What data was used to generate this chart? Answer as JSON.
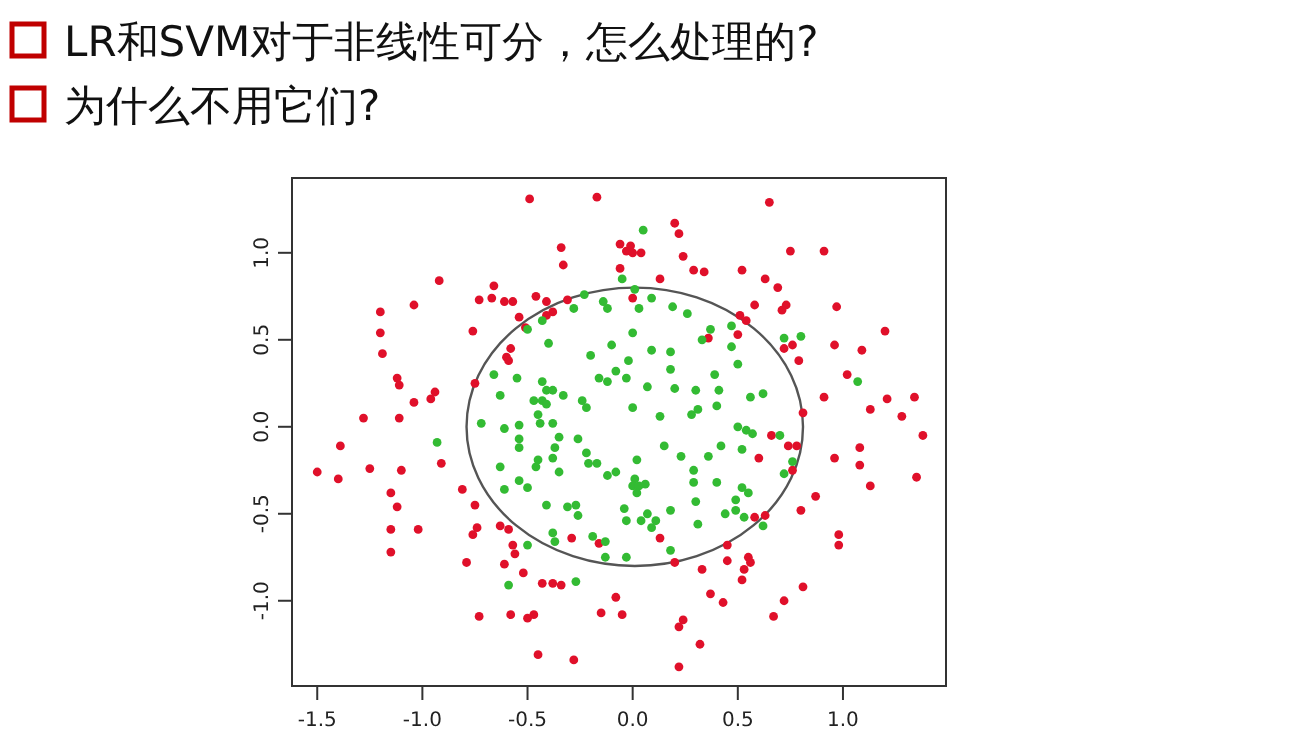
{
  "chart_data": {
    "type": "scatter",
    "title": "LR和SVM对于非线性可分，怎么处理的?",
    "subtitle": "为什么不用它们?",
    "xlim": [
      -1.62,
      1.49
    ],
    "ylim": [
      -1.49,
      1.43
    ],
    "xticks": [
      -1.5,
      {
        "value": -1,
        "label": "-1.0"
      },
      -0.5,
      {
        "value": 0,
        "label": "0.0"
      },
      0.5,
      {
        "value": 1,
        "label": "1.0"
      }
    ],
    "yticks": [
      {
        "value": -1,
        "label": "-1.0"
      },
      -0.5,
      {
        "value": 0,
        "label": "0.0"
      },
      0.5,
      {
        "value": 1,
        "label": "1.0"
      }
    ],
    "marker": "circle",
    "series": [
      {
        "color": "#e0102a",
        "x": [
          -0.49,
          -0.17,
          -0.34,
          -0.33,
          -0.92,
          -1.04,
          -1.2,
          -0.66,
          -0.73,
          -0.67,
          -0.61,
          -0.57,
          -0.46,
          -0.41,
          -0.31,
          -0.38,
          -0.41,
          -0.54,
          -1.2,
          -0.76,
          -0.51,
          -1.19,
          -0.58,
          -0.6,
          -0.59,
          -1.12,
          -1.11,
          -0.94,
          -0.96,
          -1.04,
          -0.75,
          -1.28,
          -1.11,
          0.65,
          0.2,
          0.22,
          -0.06,
          -0.01,
          -0.03,
          0.0,
          0.04,
          -0.06,
          0.24,
          0.29,
          0.34,
          0.75,
          0.91,
          0.52,
          0.13,
          0.63,
          0.69,
          0.0,
          0.58,
          0.73,
          0.71,
          0.97,
          0.51,
          0.54,
          0.5,
          0.36,
          1.2,
          0.76,
          0.72,
          0.96,
          1.09,
          0.79,
          1.02,
          0.91,
          1.13,
          1.21,
          1.34,
          1.28,
          0.81,
          -1.39,
          -1.5,
          -1.4,
          -1.25,
          -1.1,
          -0.91,
          -1.15,
          -1.12,
          -1.15,
          -1.02,
          -1.15,
          -0.81,
          -0.75,
          -0.74,
          -0.76,
          -0.63,
          -0.59,
          -0.57,
          -0.56,
          -0.61,
          -0.79,
          -0.52,
          -0.43,
          -0.38,
          -0.34,
          -0.29,
          -0.16,
          -0.73,
          -0.58,
          -0.5,
          -0.47,
          -0.15,
          -0.08,
          -0.45,
          -0.28,
          0.66,
          0.74,
          0.78,
          1.38,
          1.08,
          1.08,
          0.96,
          1.13,
          1.35,
          0.76,
          0.6,
          0.87,
          0.8,
          0.58,
          0.63,
          0.98,
          0.98,
          0.13,
          0.45,
          0.55,
          0.56,
          0.53,
          0.52,
          0.45,
          0.2,
          0.33,
          0.37,
          0.43,
          0.81,
          0.72,
          0.67,
          -0.05,
          0.24,
          0.22,
          0.32,
          0.22
        ],
        "values": [
          1.31,
          1.32,
          1.03,
          0.93,
          0.84,
          0.7,
          0.66,
          0.81,
          0.73,
          0.74,
          0.72,
          0.72,
          0.75,
          0.72,
          0.73,
          0.66,
          0.64,
          0.63,
          0.54,
          0.55,
          0.57,
          0.42,
          0.45,
          0.4,
          0.38,
          0.28,
          0.24,
          0.2,
          0.16,
          0.14,
          0.25,
          0.05,
          0.05,
          1.29,
          1.17,
          1.11,
          1.05,
          1.04,
          1.01,
          1.0,
          1.0,
          0.91,
          0.98,
          0.9,
          0.89,
          1.01,
          1.01,
          0.9,
          0.85,
          0.85,
          0.8,
          0.74,
          0.7,
          0.7,
          0.67,
          0.69,
          0.64,
          0.61,
          0.53,
          0.51,
          0.55,
          0.47,
          0.45,
          0.47,
          0.44,
          0.38,
          0.3,
          0.17,
          0.1,
          0.16,
          0.17,
          0.06,
          0.08,
          -0.11,
          -0.26,
          -0.3,
          -0.24,
          -0.25,
          -0.21,
          -0.38,
          -0.46,
          -0.59,
          -0.59,
          -0.72,
          -0.36,
          -0.45,
          -0.58,
          -0.62,
          -0.57,
          -0.59,
          -0.68,
          -0.73,
          -0.79,
          -0.78,
          -0.84,
          -0.9,
          -0.9,
          -0.91,
          -0.64,
          -0.67,
          -1.09,
          -1.08,
          -1.1,
          -1.08,
          -1.07,
          -0.98,
          -1.31,
          -1.34,
          -0.05,
          -0.11,
          -0.11,
          -0.05,
          -0.12,
          -0.22,
          -0.18,
          -0.34,
          -0.29,
          -0.25,
          -0.18,
          -0.4,
          -0.48,
          -0.52,
          -0.51,
          -0.62,
          -0.68,
          -0.64,
          -0.68,
          -0.75,
          -0.78,
          -0.82,
          -0.88,
          -0.77,
          -0.78,
          -0.82,
          -0.96,
          -1.01,
          -0.92,
          -1.0,
          -1.09,
          -1.08,
          -1.11,
          -1.15,
          -1.25,
          -1.38
        ]
      },
      {
        "color": "#33bb33",
        "x": [
          -0.23,
          -0.14,
          -0.12,
          -0.28,
          -0.43,
          -0.5,
          -0.4,
          -0.2,
          -0.1,
          -0.66,
          -0.55,
          -0.63,
          -0.43,
          -0.41,
          -0.38,
          -0.33,
          -0.47,
          -0.43,
          -0.41,
          -0.45,
          -0.24,
          -0.22,
          -0.16,
          -0.12,
          -0.08,
          0.05,
          -0.05,
          0.01,
          0.09,
          0.03,
          0.19,
          0.26,
          0.37,
          0.33,
          0.0,
          0.47,
          0.47,
          0.72,
          0.8,
          0.09,
          0.18,
          -0.02,
          0.18,
          0.5,
          0.39,
          -0.03,
          0.07,
          0.2,
          0.3,
          0.41,
          0.56,
          0.62,
          0.4,
          0.0,
          0.31,
          0.28,
          0.13,
          1.07,
          -0.93,
          -0.72,
          -0.61,
          -0.54,
          -0.44,
          -0.38,
          -0.54,
          -0.54,
          -0.35,
          -0.26,
          -0.37,
          -0.45,
          -0.46,
          -0.38,
          -0.35,
          -0.22,
          -0.21,
          -0.17,
          -0.08,
          -0.12,
          -0.63,
          -0.54,
          -0.61,
          -0.5,
          -0.41,
          -0.31,
          -0.27,
          -0.26,
          -0.38,
          -0.37,
          -0.19,
          -0.13,
          -0.13,
          -0.5,
          -0.59,
          -0.27,
          0.5,
          0.54,
          0.57,
          0.7,
          0.76,
          0.72,
          0.15,
          0.23,
          0.36,
          0.42,
          0.52,
          0.02,
          0.29,
          0.29,
          0.4,
          0.52,
          0.55,
          0.01,
          0.0,
          0.03,
          0.06,
          0.02,
          -0.04,
          -0.03,
          0.07,
          0.04,
          0.11,
          0.09,
          0.18,
          0.3,
          0.49,
          0.49,
          0.44,
          0.53,
          0.62,
          0.31,
          0.18,
          -0.03
        ],
        "values": [
          0.76,
          0.72,
          0.68,
          0.68,
          0.61,
          0.56,
          0.48,
          0.41,
          0.47,
          0.3,
          0.28,
          0.18,
          0.26,
          0.21,
          0.21,
          0.18,
          0.15,
          0.15,
          0.13,
          0.07,
          0.15,
          0.11,
          0.28,
          0.26,
          0.32,
          1.13,
          0.85,
          0.79,
          0.74,
          0.68,
          0.69,
          0.65,
          0.56,
          0.5,
          0.54,
          0.58,
          0.46,
          0.51,
          0.52,
          0.44,
          0.43,
          0.38,
          0.33,
          0.36,
          0.3,
          0.28,
          0.23,
          0.22,
          0.21,
          0.21,
          0.17,
          0.19,
          0.12,
          0.11,
          0.1,
          0.07,
          0.06,
          0.26,
          -0.09,
          0.02,
          -0.01,
          0.01,
          0.02,
          0.02,
          -0.07,
          -0.12,
          -0.06,
          -0.07,
          -0.12,
          -0.19,
          -0.23,
          -0.18,
          -0.26,
          -0.15,
          -0.21,
          -0.21,
          -0.26,
          -0.28,
          -0.23,
          -0.31,
          -0.36,
          -0.35,
          -0.45,
          -0.46,
          -0.45,
          -0.51,
          -0.61,
          -0.66,
          -0.63,
          -0.66,
          -0.75,
          -0.68,
          -0.91,
          -0.89,
          0.0,
          -0.02,
          -0.04,
          -0.05,
          -0.2,
          -0.27,
          -0.11,
          -0.17,
          -0.17,
          -0.11,
          -0.13,
          -0.19,
          -0.25,
          -0.32,
          -0.32,
          -0.35,
          -0.38,
          -0.3,
          -0.34,
          -0.34,
          -0.33,
          -0.38,
          -0.47,
          -0.54,
          -0.5,
          -0.54,
          -0.54,
          -0.58,
          -0.48,
          -0.43,
          -0.42,
          -0.48,
          -0.5,
          -0.52,
          -0.57,
          -0.56,
          -0.71,
          -0.75
        ]
      }
    ]
  }
}
